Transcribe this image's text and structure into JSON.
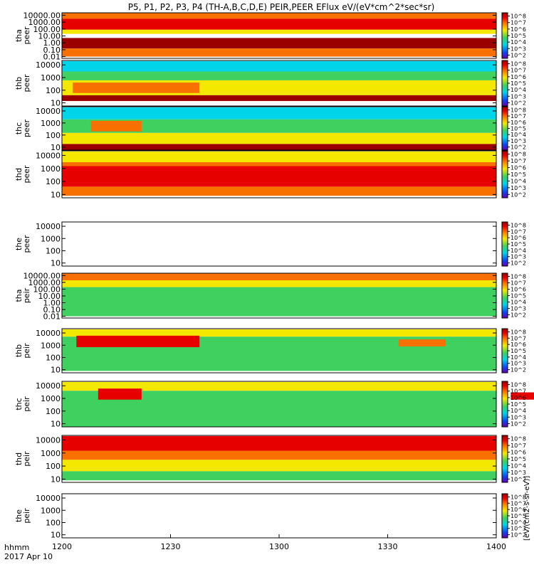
{
  "title": "P5, P1, P2, P3, P4 (TH-A,B,C,D,E) PEIR,PEER EFlux eV/(eV*cm^2*sec*sr)",
  "time_axis": {
    "label_line1": "hhmm",
    "label_line2": "2017 Apr 10",
    "ticks": [
      "1200",
      "1230",
      "1300",
      "1330",
      "1400"
    ]
  },
  "colorbar": {
    "tick_labels": [
      "10^2",
      "10^3",
      "10^4",
      "10^5",
      "10^6",
      "10^7",
      "10^8"
    ],
    "label": "[eV/(cm2-s-sr-eV)]"
  },
  "colors": {
    "dark_red": "#9a0000",
    "red": "#e60000",
    "orange": "#f77000",
    "yellow": "#f5e800",
    "green": "#3fd060",
    "cyan": "#00d4e8",
    "blue": "#1040f0"
  },
  "chart_data": [
    {
      "type": "heatmap",
      "ylabel": [
        "tha",
        "peer"
      ],
      "yticks": [
        "10000.00",
        "1000.00",
        "100.00",
        "10.00",
        "1.00",
        "0.10",
        "0.01"
      ],
      "bands": [
        {
          "y": [
            3000,
            20000
          ],
          "color": "#f77000",
          "t": [
            1200,
            1400
          ]
        },
        {
          "y": [
            80,
            3000
          ],
          "color": "#e60000",
          "t": [
            1200,
            1400
          ]
        },
        {
          "y": [
            20,
            80
          ],
          "color": "#f5e800",
          "t": [
            1200,
            1400
          ]
        },
        {
          "y": [
            0.15,
            5
          ],
          "color": "#9a0000",
          "t": [
            1200,
            1400
          ]
        },
        {
          "y": [
            0.01,
            0.15
          ],
          "color": "#f77000",
          "t": [
            1200,
            1400
          ]
        }
      ]
    },
    {
      "type": "heatmap",
      "ylabel": [
        "thb",
        "peer"
      ],
      "yticks": [
        "10000",
        "1000",
        "100",
        "10"
      ],
      "bands": [
        {
          "y": [
            3000,
            20000
          ],
          "color": "#00d4e8",
          "t": [
            1200,
            1400
          ]
        },
        {
          "y": [
            600,
            3000
          ],
          "color": "#3fd060",
          "t": [
            1200,
            1400
          ]
        },
        {
          "y": [
            40,
            600
          ],
          "color": "#f5e800",
          "t": [
            1200,
            1400
          ]
        },
        {
          "y": [
            60,
            400
          ],
          "color": "#f77000",
          "t": [
            1203,
            1238
          ]
        },
        {
          "y": [
            14,
            40
          ],
          "color": "#9a0000",
          "t": [
            1200,
            1400
          ]
        }
      ]
    },
    {
      "type": "heatmap",
      "ylabel": [
        "thc",
        "peer"
      ],
      "yticks": [
        "10000",
        "1000",
        "100",
        "10"
      ],
      "bands": [
        {
          "y": [
            2000,
            20000
          ],
          "color": "#00d4e8",
          "t": [
            1200,
            1400
          ]
        },
        {
          "y": [
            150,
            2000
          ],
          "color": "#3fd060",
          "t": [
            1200,
            1400
          ]
        },
        {
          "y": [
            18,
            150
          ],
          "color": "#f5e800",
          "t": [
            1200,
            1400
          ]
        },
        {
          "y": [
            200,
            1500
          ],
          "color": "#f77000",
          "t": [
            1208,
            1222
          ]
        },
        {
          "y": [
            6,
            18
          ],
          "color": "#9a0000",
          "t": [
            1200,
            1400
          ]
        }
      ]
    },
    {
      "type": "heatmap",
      "ylabel": [
        "thd",
        "peer"
      ],
      "yticks": [
        "10000",
        "1000",
        "100",
        "10"
      ],
      "bands": [
        {
          "y": [
            3000,
            20000
          ],
          "color": "#f5e800",
          "t": [
            1200,
            1400
          ]
        },
        {
          "y": [
            1500,
            3000
          ],
          "color": "#f77000",
          "t": [
            1200,
            1400
          ]
        },
        {
          "y": [
            40,
            1500
          ],
          "color": "#e60000",
          "t": [
            1200,
            1400
          ]
        },
        {
          "y": [
            8,
            40
          ],
          "color": "#f77000",
          "t": [
            1200,
            1400
          ]
        }
      ]
    },
    {
      "type": "heatmap",
      "ylabel": [
        "the",
        "peer"
      ],
      "yticks": [
        "10000",
        "1000",
        "100",
        "10"
      ],
      "bands": []
    },
    {
      "type": "heatmap",
      "ylabel": [
        "tha",
        "peir"
      ],
      "yticks": [
        "10000.00",
        "1000.00",
        "100.00",
        "10.00",
        "1.00",
        "0.10",
        "0.01"
      ],
      "bands": [
        {
          "y": [
            2000,
            20000
          ],
          "color": "#f77000",
          "t": [
            1200,
            1400
          ]
        },
        {
          "y": [
            200,
            2000
          ],
          "color": "#f5e800",
          "t": [
            1200,
            1400
          ]
        },
        {
          "y": [
            0.01,
            200
          ],
          "color": "#3fd060",
          "t": [
            1200,
            1400
          ]
        }
      ]
    },
    {
      "type": "heatmap",
      "ylabel": [
        "thb",
        "peir"
      ],
      "yticks": [
        "10000",
        "1000",
        "100",
        "10"
      ],
      "bands": [
        {
          "y": [
            5000,
            20000
          ],
          "color": "#f5e800",
          "t": [
            1200,
            1400
          ]
        },
        {
          "y": [
            8,
            5000
          ],
          "color": "#3fd060",
          "t": [
            1200,
            1400
          ]
        },
        {
          "y": [
            700,
            6000
          ],
          "color": "#e60000",
          "t": [
            1204,
            1238
          ]
        },
        {
          "y": [
            800,
            3000
          ],
          "color": "#f77000",
          "t": [
            1333,
            1346
          ]
        }
      ]
    },
    {
      "type": "heatmap",
      "ylabel": [
        "thc",
        "peir"
      ],
      "yticks": [
        "10000",
        "1000",
        "100",
        "10"
      ],
      "bands": [
        {
          "y": [
            4000,
            20000
          ],
          "color": "#f5e800",
          "t": [
            1200,
            1400
          ]
        },
        {
          "y": [
            6,
            4000
          ],
          "color": "#3fd060",
          "t": [
            1200,
            1400
          ]
        },
        {
          "y": [
            800,
            6000
          ],
          "color": "#e60000",
          "t": [
            1210,
            1222
          ]
        },
        {
          "y": [
            800,
            3000
          ],
          "color": "#e60000",
          "t": [
            1364,
            1372
          ]
        }
      ]
    },
    {
      "type": "heatmap",
      "ylabel": [
        "thd",
        "peir"
      ],
      "yticks": [
        "10000",
        "1000",
        "100",
        "10"
      ],
      "bands": [
        {
          "y": [
            1500,
            20000
          ],
          "color": "#e60000",
          "t": [
            1200,
            1400
          ]
        },
        {
          "y": [
            300,
            1500
          ],
          "color": "#f77000",
          "t": [
            1200,
            1400
          ]
        },
        {
          "y": [
            40,
            300
          ],
          "color": "#f5e800",
          "t": [
            1200,
            1400
          ]
        },
        {
          "y": [
            8,
            40
          ],
          "color": "#3fd060",
          "t": [
            1200,
            1400
          ]
        }
      ]
    },
    {
      "type": "heatmap",
      "ylabel": [
        "the",
        "peir"
      ],
      "yticks": [
        "10000",
        "1000",
        "100",
        "10"
      ],
      "bands": []
    }
  ]
}
